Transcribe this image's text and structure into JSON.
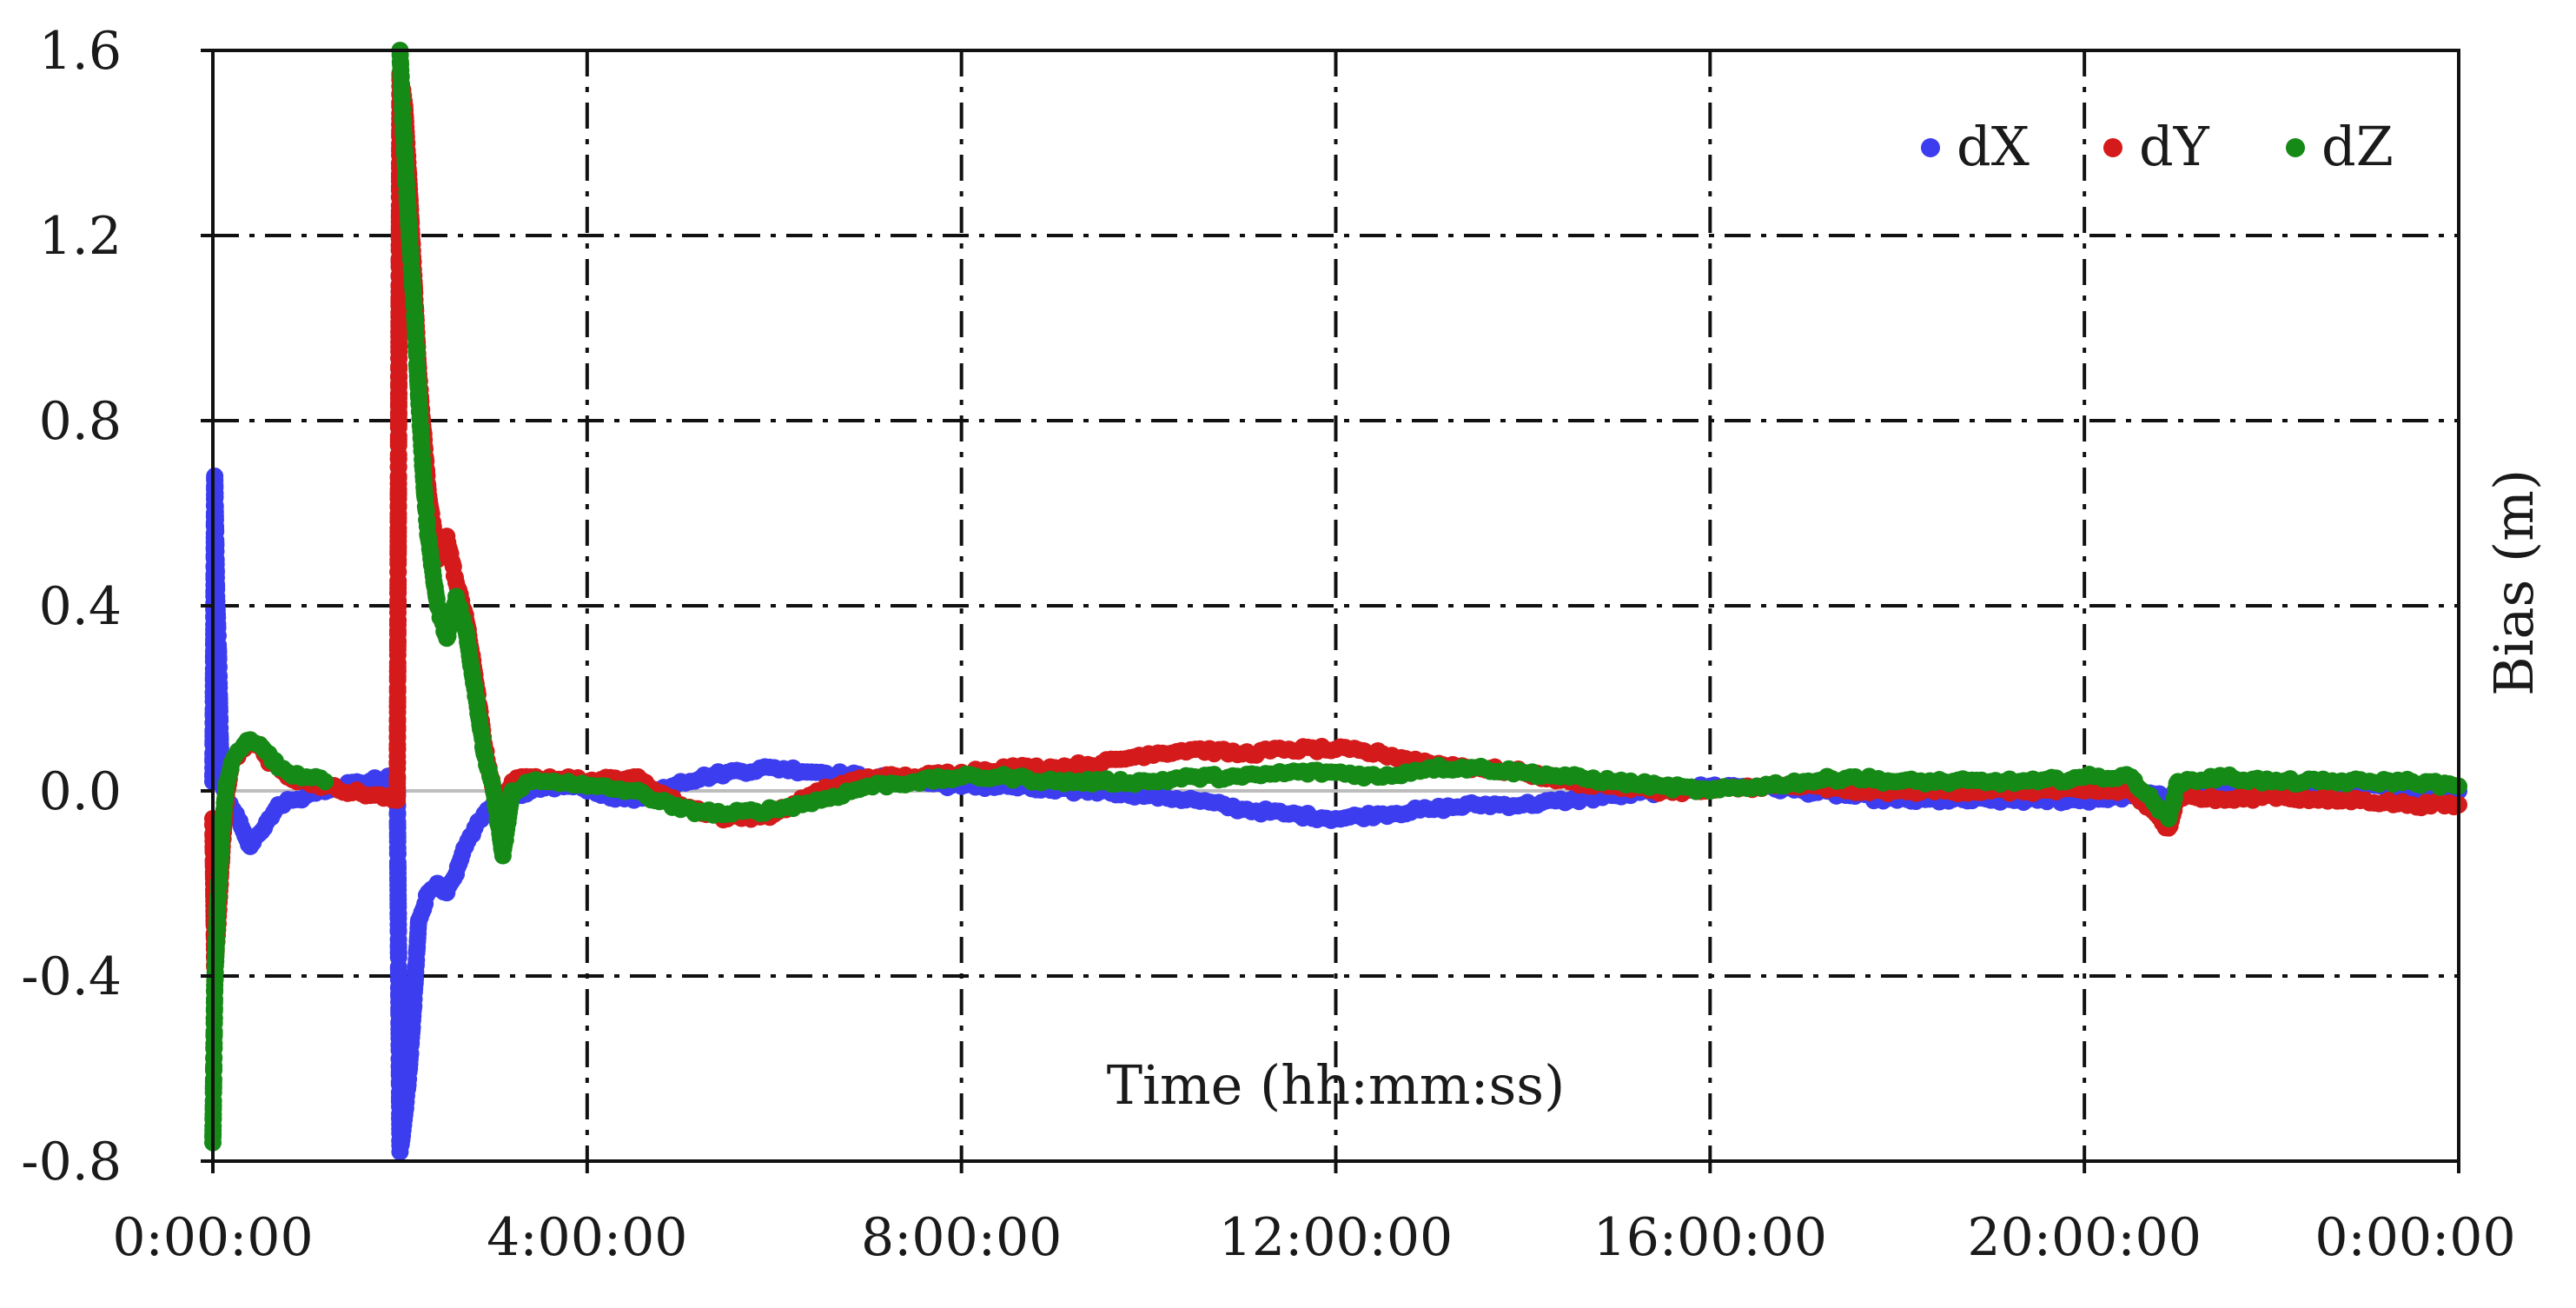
{
  "chart_data": {
    "type": "scatter",
    "xlabel": "Time (hh:mm:ss)",
    "ylabel": "Bias (m)",
    "x_unit": "hours",
    "xlim": [
      0,
      24
    ],
    "ylim": [
      -0.8,
      1.6
    ],
    "x_ticks": [
      0,
      4,
      8,
      12,
      16,
      20,
      24
    ],
    "x_tick_labels": [
      "0:00:00",
      "4:00:00",
      "8:00:00",
      "12:00:00",
      "16:00:00",
      "20:00:00",
      "0:00:00"
    ],
    "y_ticks": [
      -0.8,
      -0.4,
      0.0,
      0.4,
      0.8,
      1.2,
      1.6
    ],
    "y_tick_labels": [
      "-0.8",
      "-0.4",
      "0.0",
      "0.4",
      "0.8",
      "1.2",
      "1.6"
    ],
    "grid": true,
    "grid_style": "dash-dot",
    "zero_line": true,
    "legend_position": "top-right",
    "series": [
      {
        "name": "dX",
        "color": "#3d3df0",
        "x": [
          0.0,
          0.02,
          0.04,
          0.06,
          0.08,
          0.1,
          0.15,
          0.25,
          0.4,
          0.55,
          0.7,
          0.85,
          1.0,
          1.15,
          1.3,
          1.97,
          2.0,
          2.05,
          2.1,
          2.15,
          2.2,
          2.3,
          2.4,
          2.5,
          2.6,
          2.7,
          2.8,
          2.9,
          3.0,
          3.2,
          3.4,
          3.6,
          3.8,
          4.0,
          4.5,
          5.0,
          5.5,
          6.0,
          6.5,
          7.0,
          7.5,
          8.0,
          8.5,
          9.0,
          9.5,
          10.0,
          10.5,
          11.0,
          11.5,
          12.0,
          12.5,
          13.0,
          13.5,
          14.0,
          14.5,
          15.0,
          15.5,
          16.0,
          16.5,
          17.0,
          17.5,
          18.0,
          18.5,
          19.0,
          19.5,
          20.0,
          20.5,
          21.0,
          21.5,
          22.0,
          22.5,
          23.0,
          23.5,
          24.0
        ],
        "y": [
          0.02,
          0.68,
          0.42,
          0.3,
          0.1,
          0.02,
          -0.02,
          -0.05,
          -0.12,
          -0.08,
          -0.03,
          -0.02,
          -0.01,
          0.0,
          0.01,
          0.03,
          -0.78,
          -0.7,
          -0.6,
          -0.45,
          -0.28,
          -0.22,
          -0.2,
          -0.22,
          -0.18,
          -0.12,
          -0.08,
          -0.05,
          -0.03,
          -0.01,
          0.0,
          0.01,
          0.01,
          0.0,
          -0.02,
          0.02,
          0.04,
          0.05,
          0.04,
          0.03,
          0.02,
          0.01,
          0.01,
          0.0,
          0.0,
          -0.01,
          -0.02,
          -0.04,
          -0.05,
          -0.06,
          -0.05,
          -0.04,
          -0.03,
          -0.03,
          -0.02,
          -0.01,
          0.0,
          0.01,
          0.01,
          0.0,
          -0.01,
          -0.02,
          -0.02,
          -0.02,
          -0.02,
          -0.02,
          -0.01,
          -0.01,
          0.0,
          0.0,
          0.0,
          0.01,
          0.0,
          0.0
        ]
      },
      {
        "name": "dY",
        "color": "#d41a1a",
        "x": [
          0.0,
          0.02,
          0.05,
          0.1,
          0.15,
          0.2,
          0.3,
          0.4,
          0.5,
          0.6,
          0.7,
          0.8,
          1.0,
          1.2,
          1.97,
          2.0,
          2.05,
          2.1,
          2.15,
          2.2,
          2.3,
          2.4,
          2.5,
          2.6,
          2.7,
          2.8,
          2.9,
          3.0,
          3.1,
          3.2,
          3.4,
          3.6,
          3.8,
          4.0,
          4.5,
          5.0,
          5.5,
          6.0,
          6.5,
          7.0,
          7.5,
          8.0,
          8.5,
          9.0,
          9.5,
          10.0,
          10.5,
          11.0,
          11.5,
          12.0,
          12.5,
          13.0,
          13.5,
          14.0,
          14.5,
          15.0,
          15.5,
          16.0,
          16.5,
          17.0,
          17.5,
          18.0,
          18.5,
          19.0,
          19.5,
          20.0,
          20.5,
          20.9,
          21.0,
          21.5,
          22.0,
          22.5,
          23.0,
          23.5,
          24.0
        ],
        "y": [
          -0.06,
          -0.38,
          -0.3,
          -0.12,
          0.0,
          0.06,
          0.09,
          0.11,
          0.1,
          0.06,
          0.05,
          0.03,
          0.02,
          0.01,
          -0.02,
          1.55,
          1.48,
          1.3,
          1.1,
          0.9,
          0.65,
          0.5,
          0.55,
          0.45,
          0.38,
          0.25,
          0.1,
          0.0,
          -0.02,
          0.02,
          0.03,
          0.03,
          0.03,
          0.02,
          0.03,
          -0.03,
          -0.06,
          -0.05,
          0.0,
          0.03,
          0.03,
          0.04,
          0.05,
          0.05,
          0.06,
          0.08,
          0.09,
          0.08,
          0.09,
          0.09,
          0.08,
          0.06,
          0.05,
          0.04,
          0.02,
          0.01,
          0.0,
          0.0,
          0.01,
          0.01,
          0.0,
          0.0,
          0.0,
          0.0,
          0.0,
          0.0,
          0.0,
          -0.08,
          -0.01,
          -0.02,
          -0.01,
          -0.02,
          -0.02,
          -0.03,
          -0.03
        ]
      },
      {
        "name": "dZ",
        "color": "#168a16",
        "x": [
          0.0,
          0.02,
          0.05,
          0.1,
          0.15,
          0.2,
          0.3,
          0.4,
          0.5,
          0.6,
          0.7,
          0.8,
          1.0,
          1.2,
          2.0,
          2.03,
          2.05,
          2.1,
          2.15,
          2.2,
          2.25,
          2.3,
          2.4,
          2.5,
          2.6,
          2.7,
          2.8,
          2.9,
          3.0,
          3.1,
          3.2,
          3.4,
          3.6,
          3.8,
          4.0,
          4.5,
          5.0,
          5.5,
          6.0,
          6.5,
          7.0,
          7.5,
          8.0,
          8.5,
          9.0,
          9.5,
          10.0,
          10.5,
          11.0,
          11.5,
          12.0,
          12.5,
          13.0,
          13.5,
          14.0,
          14.5,
          15.0,
          15.5,
          16.0,
          16.5,
          17.0,
          17.5,
          18.0,
          18.5,
          19.0,
          19.5,
          20.0,
          20.5,
          20.9,
          21.0,
          21.5,
          22.0,
          22.5,
          23.0,
          23.5,
          24.0
        ],
        "y": [
          -0.76,
          -0.42,
          -0.25,
          -0.08,
          0.02,
          0.06,
          0.09,
          0.11,
          0.1,
          0.08,
          0.05,
          0.04,
          0.03,
          0.02,
          1.6,
          1.45,
          1.38,
          1.2,
          1.05,
          0.85,
          0.68,
          0.55,
          0.4,
          0.33,
          0.42,
          0.35,
          0.22,
          0.08,
          0.0,
          -0.14,
          0.0,
          0.02,
          0.02,
          0.02,
          0.01,
          0.0,
          -0.04,
          -0.05,
          -0.04,
          -0.02,
          0.01,
          0.02,
          0.03,
          0.03,
          0.02,
          0.02,
          0.02,
          0.03,
          0.03,
          0.04,
          0.04,
          0.03,
          0.05,
          0.05,
          0.04,
          0.03,
          0.02,
          0.01,
          0.0,
          0.01,
          0.02,
          0.03,
          0.02,
          0.02,
          0.02,
          0.02,
          0.03,
          0.03,
          -0.06,
          0.02,
          0.03,
          0.02,
          0.02,
          0.02,
          0.02,
          0.01
        ]
      }
    ]
  }
}
